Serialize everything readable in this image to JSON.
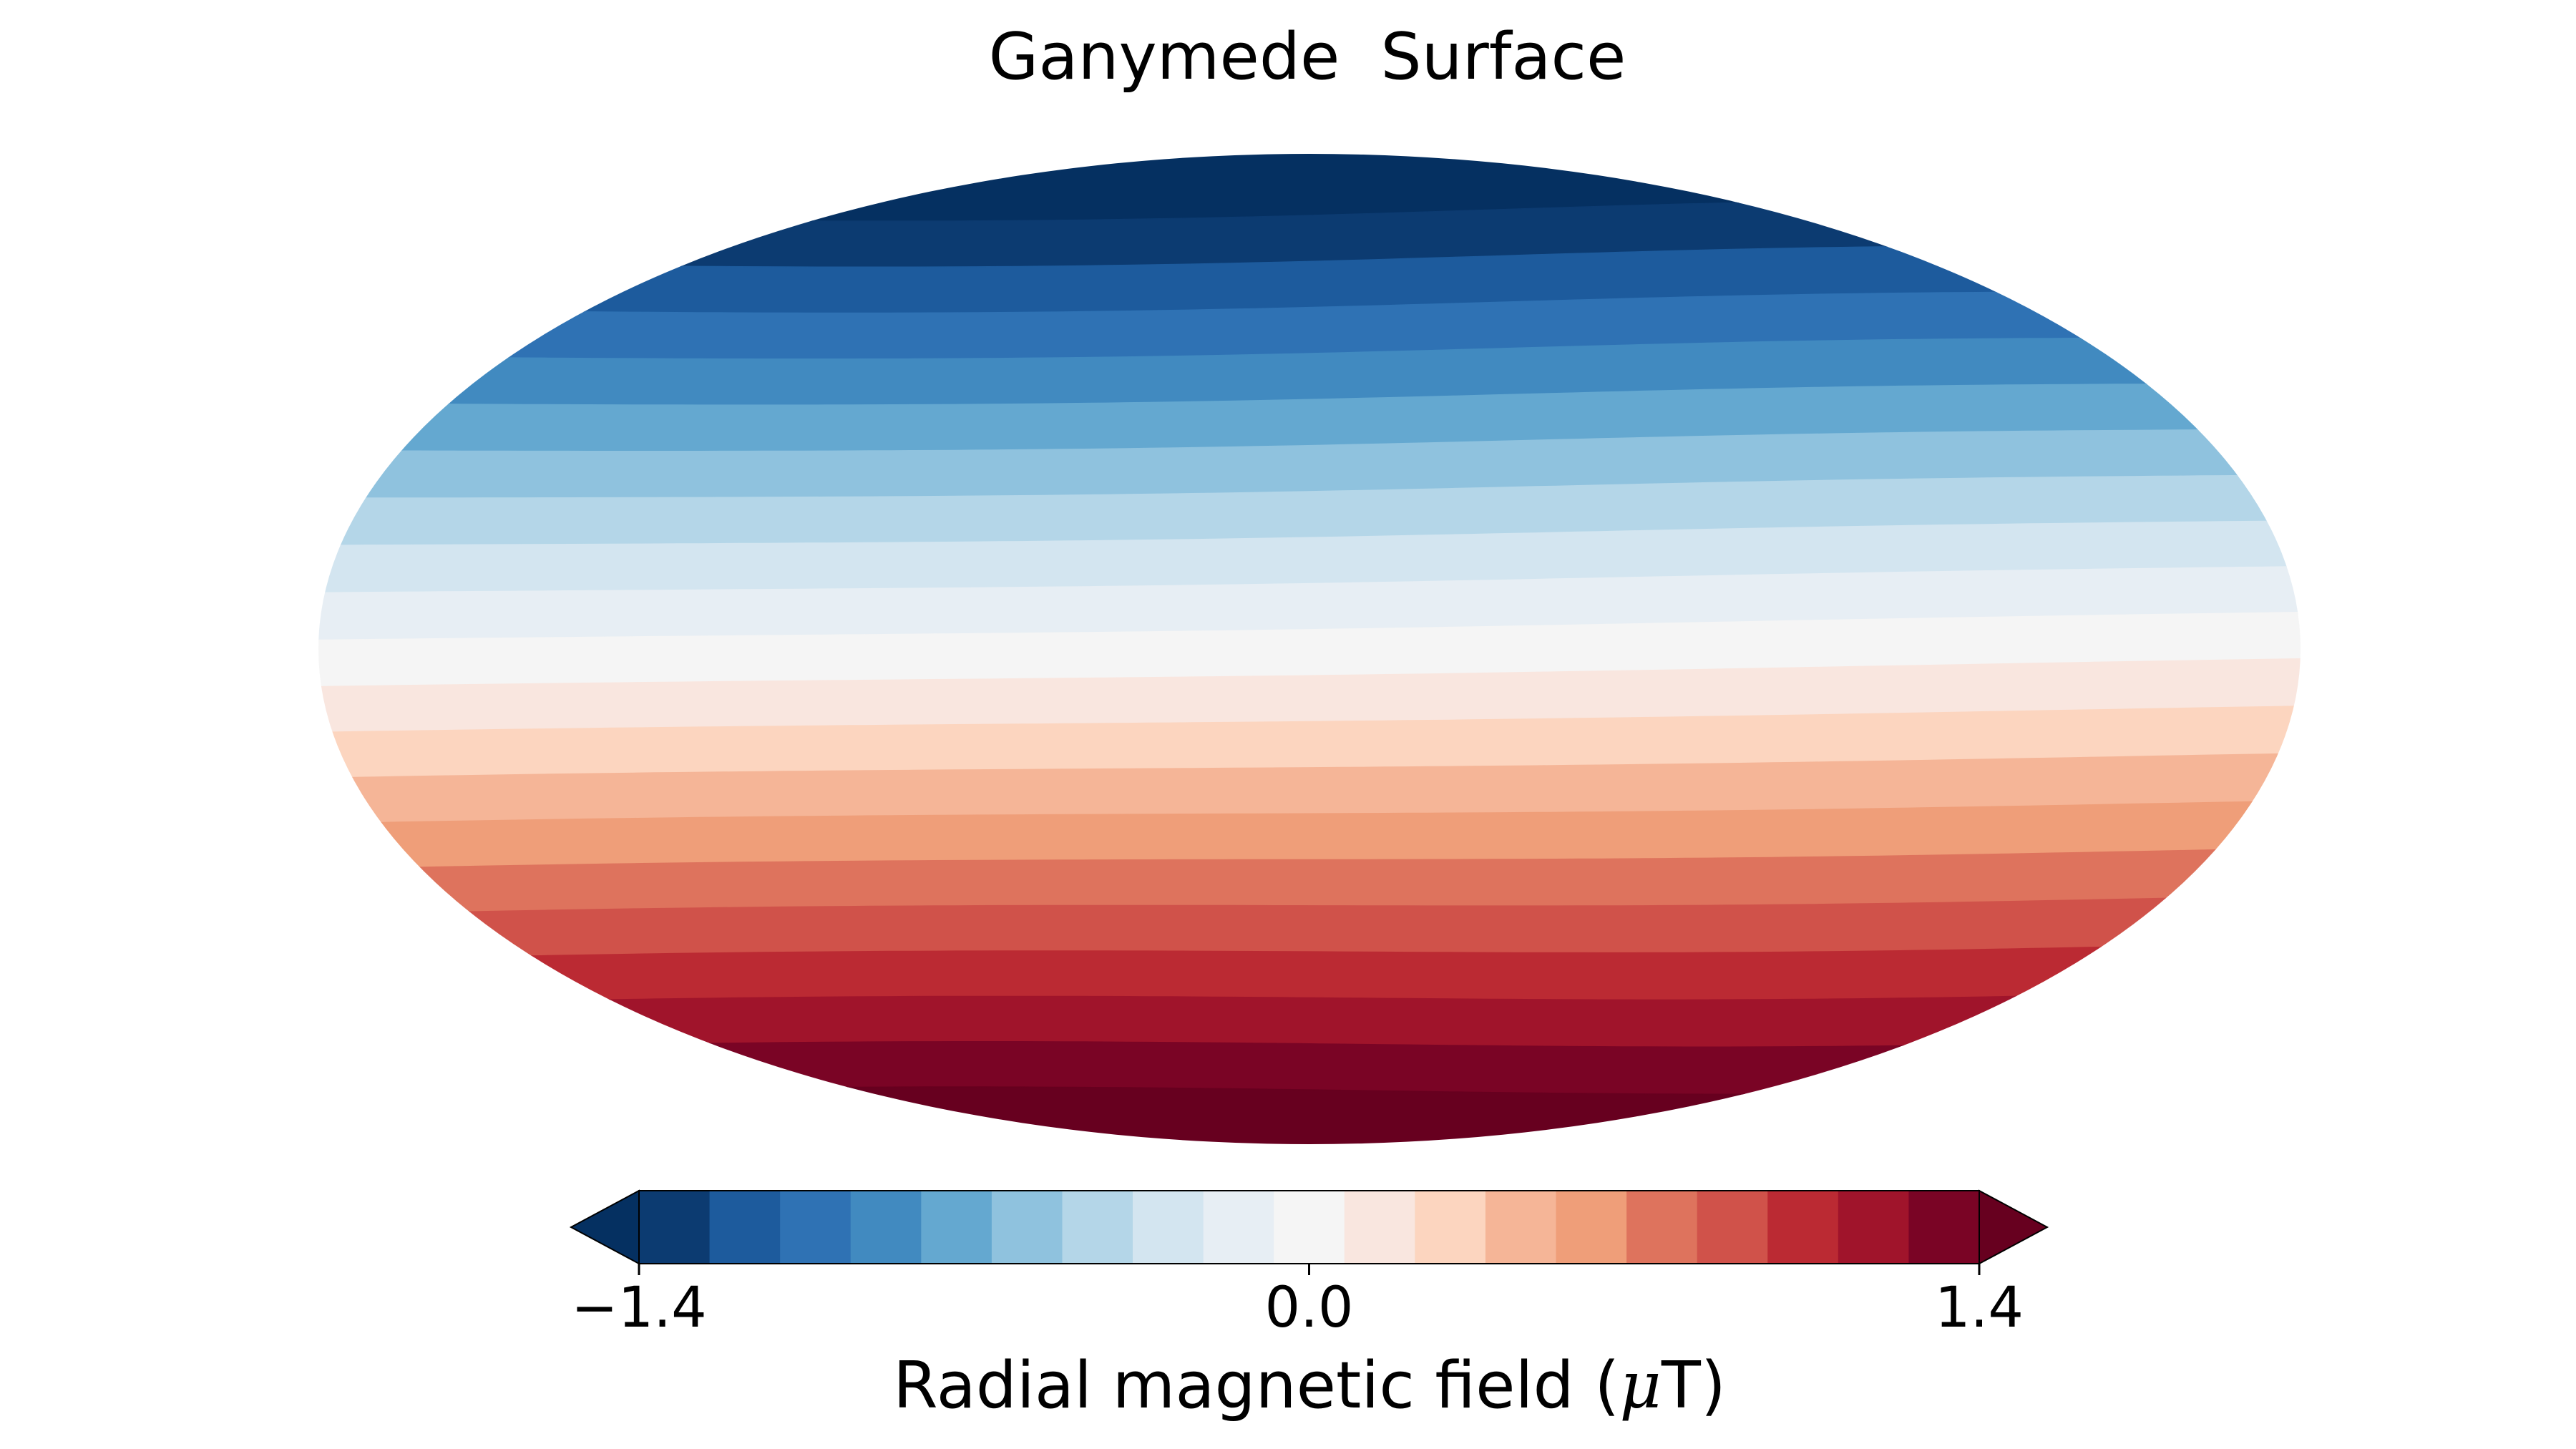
{
  "chart_data": {
    "type": "heatmap",
    "title": "Ganymede  Surface",
    "projection": "mollweide",
    "grid": false,
    "colormap": "RdBu_r",
    "colorbar": {
      "placement": "bottom",
      "label_parts": [
        "Radial magnetic field (",
        "μ",
        "T)"
      ],
      "ticks": [
        "−1.4",
        "0.0",
        "1.4"
      ],
      "tick_values": [
        -1.4,
        0.0,
        1.4
      ],
      "range": [
        -1.4,
        1.4
      ],
      "levels": [
        -1.4,
        -1.225,
        -1.05,
        -0.875,
        -0.7,
        -0.525,
        -0.35,
        -0.175,
        0.0,
        0.175,
        0.35,
        0.525,
        0.7,
        0.875,
        1.05,
        1.225,
        1.4
      ],
      "extend": "both",
      "under_color": "#053061",
      "over_color": "#67001f",
      "colors": [
        "#0c3b71",
        "#1d5b9d",
        "#2f72b4",
        "#418ac0",
        "#64a8d0",
        "#8fc2de",
        "#b4d6e8",
        "#d3e5f0",
        "#e7eef4",
        "#f5f5f5",
        "#f9e6df",
        "#fcd5bf",
        "#f5b597",
        "#ef9e79",
        "#de735d",
        "#d0524a",
        "#bb2a33",
        "#a0142b",
        "#7a0425"
      ]
    },
    "contour_bands_top_to_bottom": [
      "#053061",
      "#0c3b71",
      "#1d5b9d",
      "#2f72b4",
      "#418ac0",
      "#64a8d0",
      "#8fc2de",
      "#b4d6e8",
      "#d3e5f0",
      "#e7eef4",
      "#f5f5f5",
      "#f9e6df",
      "#fcd5bf",
      "#f5b597",
      "#ef9e79",
      "#de735d",
      "#d0524a",
      "#bb2a33",
      "#a0142b",
      "#7a0425",
      "#67001f"
    ],
    "field_description_latitude_range_deg": [
      -90,
      90
    ]
  }
}
